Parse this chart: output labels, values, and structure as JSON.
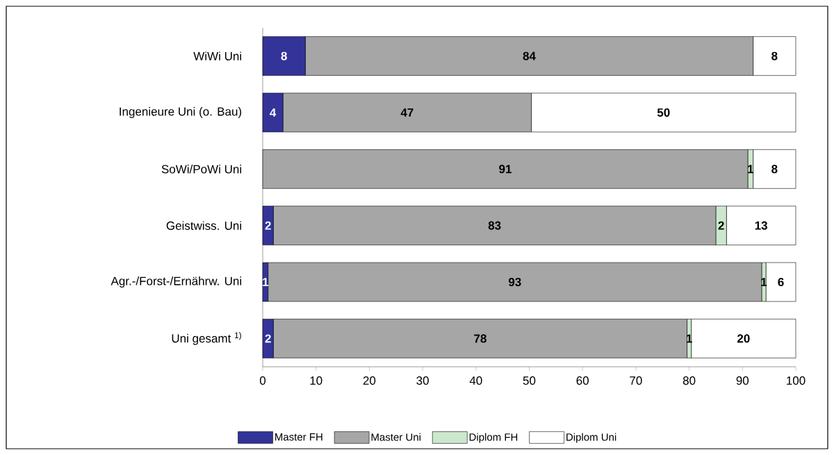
{
  "chart_data": {
    "type": "bar",
    "orientation": "horizontal",
    "stacked": true,
    "categories": [
      "WiWi Uni",
      "Ingenieure Uni (o. Bau)",
      "SoWi/PoWi Uni",
      "Geistwiss. Uni",
      "Agr.-/Forst-/Ernährw. Uni",
      "Uni gesamt $^{1)}$"
    ],
    "series": [
      {
        "name": "Master FH",
        "color": "#333399",
        "values": [
          8,
          3.8,
          0,
          2,
          1,
          2
        ],
        "value_labels": [
          "8",
          "4",
          null,
          "2",
          "1",
          "2"
        ]
      },
      {
        "name": "Master Uni",
        "color": "#a6a6a6",
        "values": [
          84,
          46.6,
          91,
          83,
          92.6,
          77.6
        ],
        "value_labels": [
          "84",
          "47",
          "91",
          "83",
          "93",
          "78"
        ]
      },
      {
        "name": "Diplom FH",
        "color": "#cce8cc",
        "values": [
          0,
          0,
          1,
          2,
          0.8,
          0.8
        ],
        "value_labels": [
          null,
          null,
          "1",
          "2",
          "1",
          "1"
        ]
      },
      {
        "name": "Diplom Uni",
        "color": "#ffffff",
        "values": [
          8,
          49.6,
          8,
          13,
          5.6,
          19.6
        ],
        "value_labels": [
          "8",
          "50",
          "8",
          "13",
          "6",
          "20"
        ]
      }
    ],
    "xlim": [
      0,
      100
    ],
    "xticks": [
      0,
      10,
      20,
      30,
      40,
      50,
      60,
      70,
      80,
      90,
      100
    ],
    "legend": "bottom"
  }
}
